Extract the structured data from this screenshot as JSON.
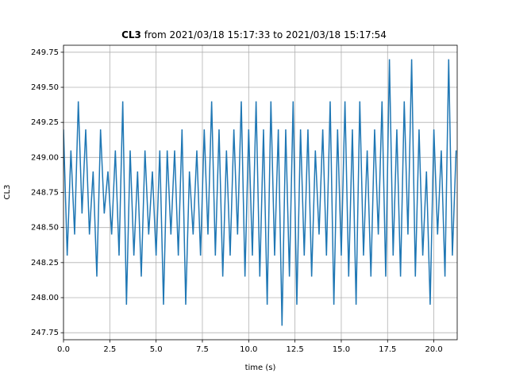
{
  "chart_data": {
    "type": "line",
    "title": "CL3",
    "subtitle": "from 2021/03/18 15:17:33 to 2021/03/18 15:17:54",
    "x_label": "time (s)",
    "y_label": "CL3",
    "grid": true,
    "xlim": [
      0,
      21.26
    ],
    "ylim": [
      247.7,
      249.8
    ],
    "xticks": [
      {
        "value": 0,
        "label": "0.0"
      },
      {
        "value": 2.5,
        "label": "2.5"
      },
      {
        "value": 5,
        "label": "5.0"
      },
      {
        "value": 7.5,
        "label": "7.5"
      },
      {
        "value": 10,
        "label": "10.0"
      },
      {
        "value": 12.5,
        "label": "12.5"
      },
      {
        "value": 15,
        "label": "15.0"
      },
      {
        "value": 17.5,
        "label": "17.5"
      },
      {
        "value": 20,
        "label": "20.0"
      }
    ],
    "yticks": [
      247.75,
      {
        "value": 248,
        "label": "248.00"
      },
      248.25,
      {
        "value": 248.5,
        "label": "248.50"
      },
      248.75,
      {
        "value": 249,
        "label": "249.00"
      },
      249.25,
      {
        "value": 249.5,
        "label": "249.50"
      },
      249.75
    ],
    "x": [
      0,
      0.2,
      0.4,
      0.6,
      0.8,
      1,
      1.2,
      1.4,
      1.6,
      1.8,
      2,
      2.2,
      2.4,
      2.6,
      2.8,
      3,
      3.2,
      3.4,
      3.6,
      3.8,
      4,
      4.2,
      4.4,
      4.6,
      4.8,
      5,
      5.2,
      5.4,
      5.6,
      5.8,
      6,
      6.2,
      6.4,
      6.6,
      6.8,
      7,
      7.2,
      7.4,
      7.6,
      7.8,
      8,
      8.2,
      8.4,
      8.6,
      8.8,
      9,
      9.2,
      9.4,
      9.6,
      9.8,
      10,
      10.2,
      10.4,
      10.6,
      10.8,
      11,
      11.2,
      11.4,
      11.6,
      11.8,
      12,
      12.2,
      12.4,
      12.6,
      12.8,
      13,
      13.2,
      13.4,
      13.6,
      13.8,
      14,
      14.2,
      14.4,
      14.6,
      14.8,
      15,
      15.2,
      15.4,
      15.6,
      15.8,
      16,
      16.2,
      16.4,
      16.6,
      16.8,
      17,
      17.2,
      17.4,
      17.6,
      17.8,
      18,
      18.2,
      18.4,
      18.6,
      18.8,
      19,
      19.2,
      19.4,
      19.6,
      19.8,
      20,
      20.2,
      20.4,
      20.6,
      20.8,
      21,
      21.2
    ],
    "series": [
      {
        "name": "CL3",
        "color": "#1f77b4",
        "values": [
          249.2,
          248.3,
          249.05,
          248.45,
          249.4,
          248.6,
          249.2,
          248.45,
          248.9,
          248.15,
          249.2,
          248.6,
          248.9,
          248.45,
          249.05,
          248.3,
          249.4,
          247.95,
          249.05,
          248.3,
          248.9,
          248.15,
          249.05,
          248.45,
          248.9,
          248.3,
          249.05,
          247.95,
          249.05,
          248.45,
          249.05,
          248.3,
          249.2,
          247.95,
          248.9,
          248.45,
          249.05,
          248.3,
          249.2,
          248.45,
          249.4,
          248.3,
          249.2,
          248.15,
          249.05,
          248.3,
          249.2,
          248.45,
          249.4,
          248.15,
          249.2,
          248.3,
          249.4,
          248.15,
          249.2,
          247.95,
          249.4,
          248.3,
          249.2,
          247.8,
          249.2,
          248.15,
          249.4,
          247.95,
          249.2,
          248.3,
          249.2,
          248.15,
          249.05,
          248.45,
          249.2,
          248.3,
          249.4,
          247.95,
          249.2,
          248.3,
          249.4,
          248.15,
          249.2,
          247.95,
          249.4,
          248.3,
          249.05,
          248.15,
          249.2,
          248.45,
          249.4,
          248.15,
          249.7,
          248.3,
          249.2,
          248.15,
          249.4,
          248.45,
          249.7,
          248.15,
          249.2,
          248.3,
          248.9,
          247.95,
          249.2,
          248.45,
          249.05,
          248.15,
          249.7,
          248.3,
          249.05
        ]
      }
    ]
  }
}
